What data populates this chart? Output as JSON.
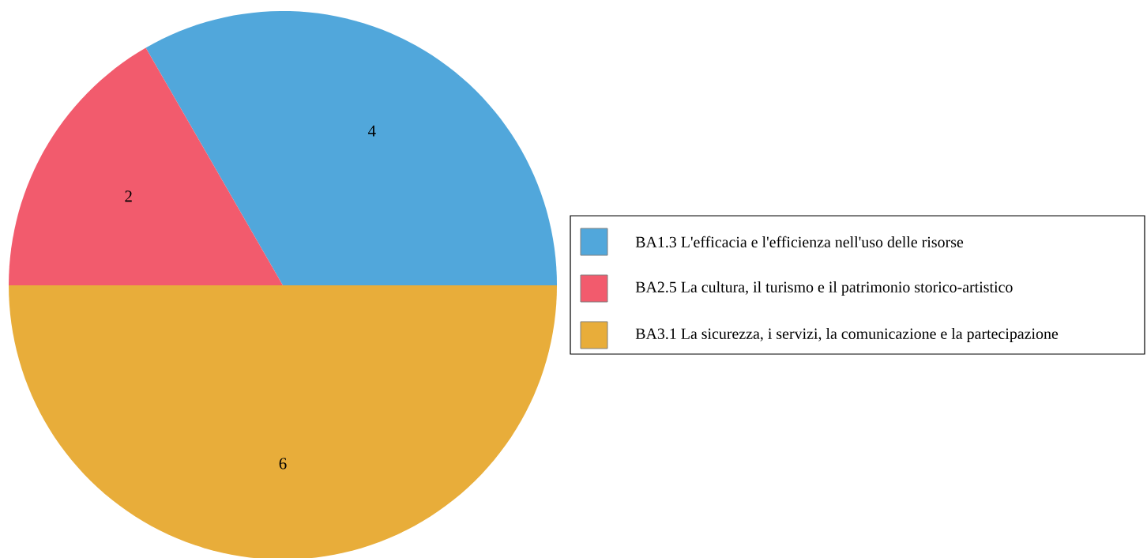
{
  "chart_data": {
    "type": "pie",
    "categories": [
      "BA1.3 L'efficacia e l'efficienza nell'uso delle risorse",
      "BA2.5 La cultura, il turismo e il patrimonio storico-artistico",
      "BA3.1 La sicurezza, i servizi, la comunicazione e la partecipazione"
    ],
    "values": [
      4,
      2,
      6
    ],
    "colors": [
      "#51a7db",
      "#f25b6d",
      "#e8ad3a"
    ],
    "data_labels": true,
    "legend": "right"
  }
}
